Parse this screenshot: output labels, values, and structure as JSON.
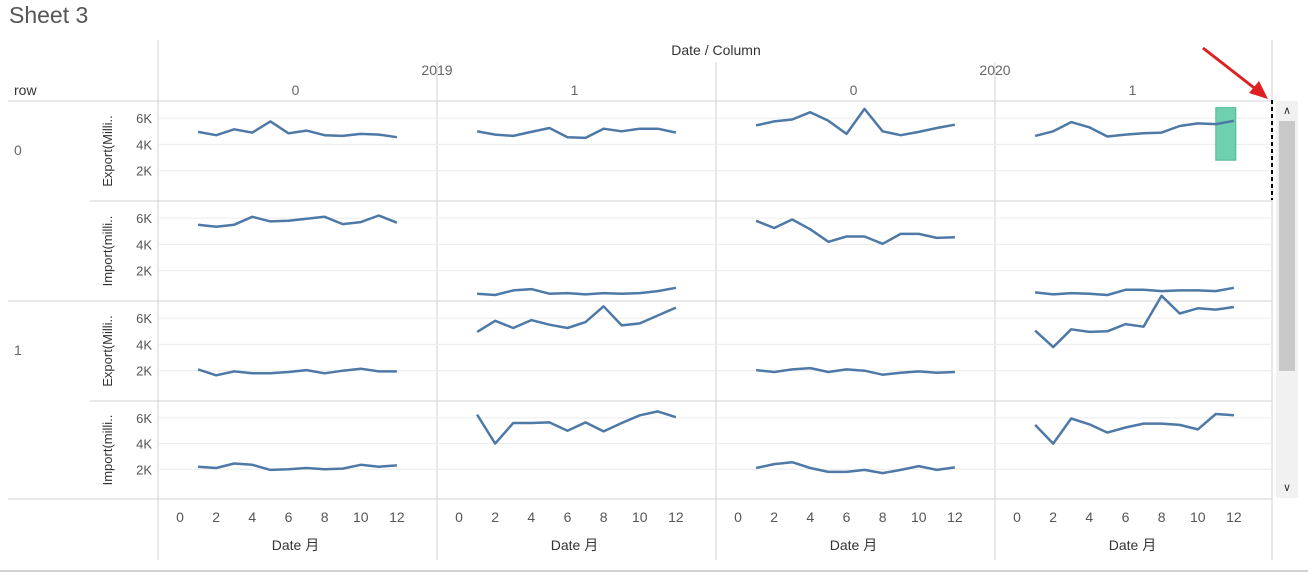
{
  "sheet": {
    "title": "Sheet 3"
  },
  "header": {
    "column_title": "Date / Column",
    "row_title": "row",
    "years": [
      "2019",
      "2020"
    ],
    "columns": [
      "0",
      "1",
      "0",
      "1"
    ],
    "rows": [
      "0",
      "1"
    ]
  },
  "measures": [
    "Export(Milli..",
    "Import(milli.."
  ],
  "x_axis": {
    "label": "Date 月",
    "ticks": [
      "0",
      "2",
      "4",
      "6",
      "8",
      "10",
      "12"
    ]
  },
  "y_axis": {
    "ticks": [
      "2K",
      "4K",
      "6K"
    ]
  },
  "colors": {
    "line": "#4e79a7",
    "grid": "#ececec",
    "border": "#d0d0d0",
    "highlight": "#6fd0b0",
    "arrow": "#e02020"
  },
  "chart_data": {
    "type": "line",
    "x": [
      1,
      2,
      3,
      4,
      5,
      6,
      7,
      8,
      9,
      10,
      11,
      12
    ],
    "xlim": [
      0,
      13
    ],
    "ylim": [
      0,
      7000
    ],
    "panels": [
      {
        "row": "0",
        "measure": "Export(Milli..",
        "year": "2019",
        "column": "0",
        "values": [
          4950,
          4700,
          5150,
          4900,
          5750,
          4850,
          5050,
          4700,
          4650,
          4800,
          4750,
          4550
        ]
      },
      {
        "row": "0",
        "measure": "Export(Milli..",
        "year": "2019",
        "column": "1",
        "values": [
          5000,
          4750,
          4650,
          4950,
          5250,
          4550,
          4500,
          5200,
          5000,
          5200,
          5200,
          4900
        ]
      },
      {
        "row": "0",
        "measure": "Export(Milli..",
        "year": "2020",
        "column": "0",
        "values": [
          5450,
          5750,
          5900,
          6450,
          5800,
          4800,
          6700,
          5000,
          4700,
          4950,
          5250,
          5500
        ]
      },
      {
        "row": "0",
        "measure": "Export(Milli..",
        "year": "2020",
        "column": "1",
        "values": [
          4650,
          5000,
          5700,
          5300,
          4600,
          4750,
          4850,
          4900,
          5400,
          5600,
          5550,
          5800
        ]
      },
      {
        "row": "0",
        "measure": "Import(milli..",
        "year": "2019",
        "column": "0",
        "values": [
          5500,
          5350,
          5500,
          6100,
          5750,
          5800,
          5950,
          6100,
          5550,
          5700,
          6200,
          5650
        ]
      },
      {
        "row": "0",
        "measure": "Import(milli..",
        "year": "2019",
        "column": "1",
        "values": [
          250,
          150,
          500,
          600,
          250,
          300,
          200,
          300,
          250,
          300,
          450,
          700
        ]
      },
      {
        "row": "0",
        "measure": "Import(milli..",
        "year": "2020",
        "column": "0",
        "values": [
          5800,
          5250,
          5900,
          5150,
          4200,
          4600,
          4600,
          4050,
          4800,
          4800,
          4500,
          4550
        ]
      },
      {
        "row": "0",
        "measure": "Import(milli..",
        "year": "2020",
        "column": "1",
        "values": [
          350,
          200,
          300,
          250,
          150,
          550,
          550,
          450,
          500,
          500,
          450,
          700
        ]
      },
      {
        "row": "1",
        "measure": "Export(Milli..",
        "year": "2019",
        "column": "0",
        "values": [
          2100,
          1650,
          1950,
          1800,
          1800,
          1900,
          2050,
          1800,
          2000,
          2150,
          1950,
          1950
        ]
      },
      {
        "row": "1",
        "measure": "Export(Milli..",
        "year": "2019",
        "column": "1",
        "values": [
          4950,
          5800,
          5250,
          5850,
          5500,
          5250,
          5700,
          6900,
          5450,
          5600,
          6200,
          6800
        ]
      },
      {
        "row": "1",
        "measure": "Export(Milli..",
        "year": "2020",
        "column": "0",
        "values": [
          2050,
          1900,
          2100,
          2200,
          1900,
          2100,
          2000,
          1700,
          1850,
          1950,
          1850,
          1900
        ]
      },
      {
        "row": "1",
        "measure": "Export(Milli..",
        "year": "2020",
        "column": "1",
        "values": [
          5050,
          3800,
          5150,
          4950,
          5000,
          5550,
          5350,
          7700,
          6350,
          6750,
          6650,
          6850
        ]
      },
      {
        "row": "1",
        "measure": "Import(milli..",
        "year": "2019",
        "column": "0",
        "values": [
          2200,
          2100,
          2450,
          2350,
          1950,
          2000,
          2100,
          2000,
          2050,
          2350,
          2200,
          2300
        ]
      },
      {
        "row": "1",
        "measure": "Import(milli..",
        "year": "2019",
        "column": "1",
        "values": [
          6250,
          4000,
          5600,
          5600,
          5650,
          5000,
          5650,
          4950,
          5600,
          6200,
          6500,
          6050
        ]
      },
      {
        "row": "1",
        "measure": "Import(milli..",
        "year": "2020",
        "column": "0",
        "values": [
          2100,
          2400,
          2550,
          2100,
          1800,
          1800,
          1950,
          1700,
          1950,
          2250,
          1950,
          2150
        ]
      },
      {
        "row": "1",
        "measure": "Import(milli..",
        "year": "2020",
        "column": "1",
        "values": [
          5450,
          4000,
          5950,
          5500,
          4850,
          5250,
          5550,
          5550,
          5450,
          5100,
          6300,
          6200
        ]
      }
    ],
    "grid": true
  }
}
